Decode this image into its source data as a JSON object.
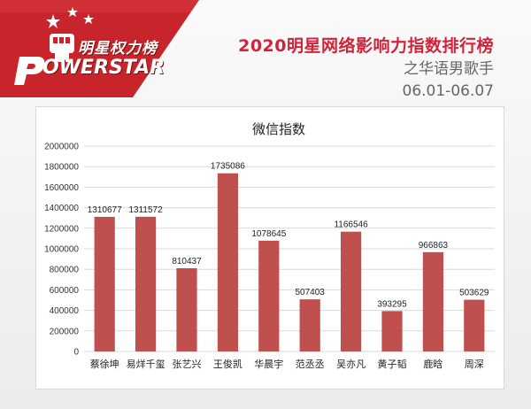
{
  "brand": {
    "logo_cn": "明星权力榜",
    "logo_en": "OWERSTAR"
  },
  "header": {
    "title": "2020明星网络影响力指数排行榜",
    "subtitle": "之华语男歌手",
    "date_range": "06.01-06.07"
  },
  "colors": {
    "bar": "#c0504d",
    "title_red": "#d1243a",
    "banner_red": "#c8242c"
  },
  "chart_data": {
    "type": "bar",
    "title": "微信指数",
    "categories": [
      "蔡徐坤",
      "易烊千玺",
      "张艺兴",
      "王俊凯",
      "华晨宇",
      "范丞丞",
      "吴亦凡",
      "黄子韬",
      "鹿晗",
      "周深"
    ],
    "values": [
      1310677,
      1311572,
      810437,
      1735086,
      1078645,
      507403,
      1166546,
      393295,
      966863,
      503629
    ],
    "ylim": [
      0,
      2000000
    ],
    "yticks": [
      0,
      200000,
      400000,
      600000,
      800000,
      1000000,
      1200000,
      1400000,
      1600000,
      1800000,
      2000000
    ],
    "grid": true,
    "data_labels": true
  }
}
